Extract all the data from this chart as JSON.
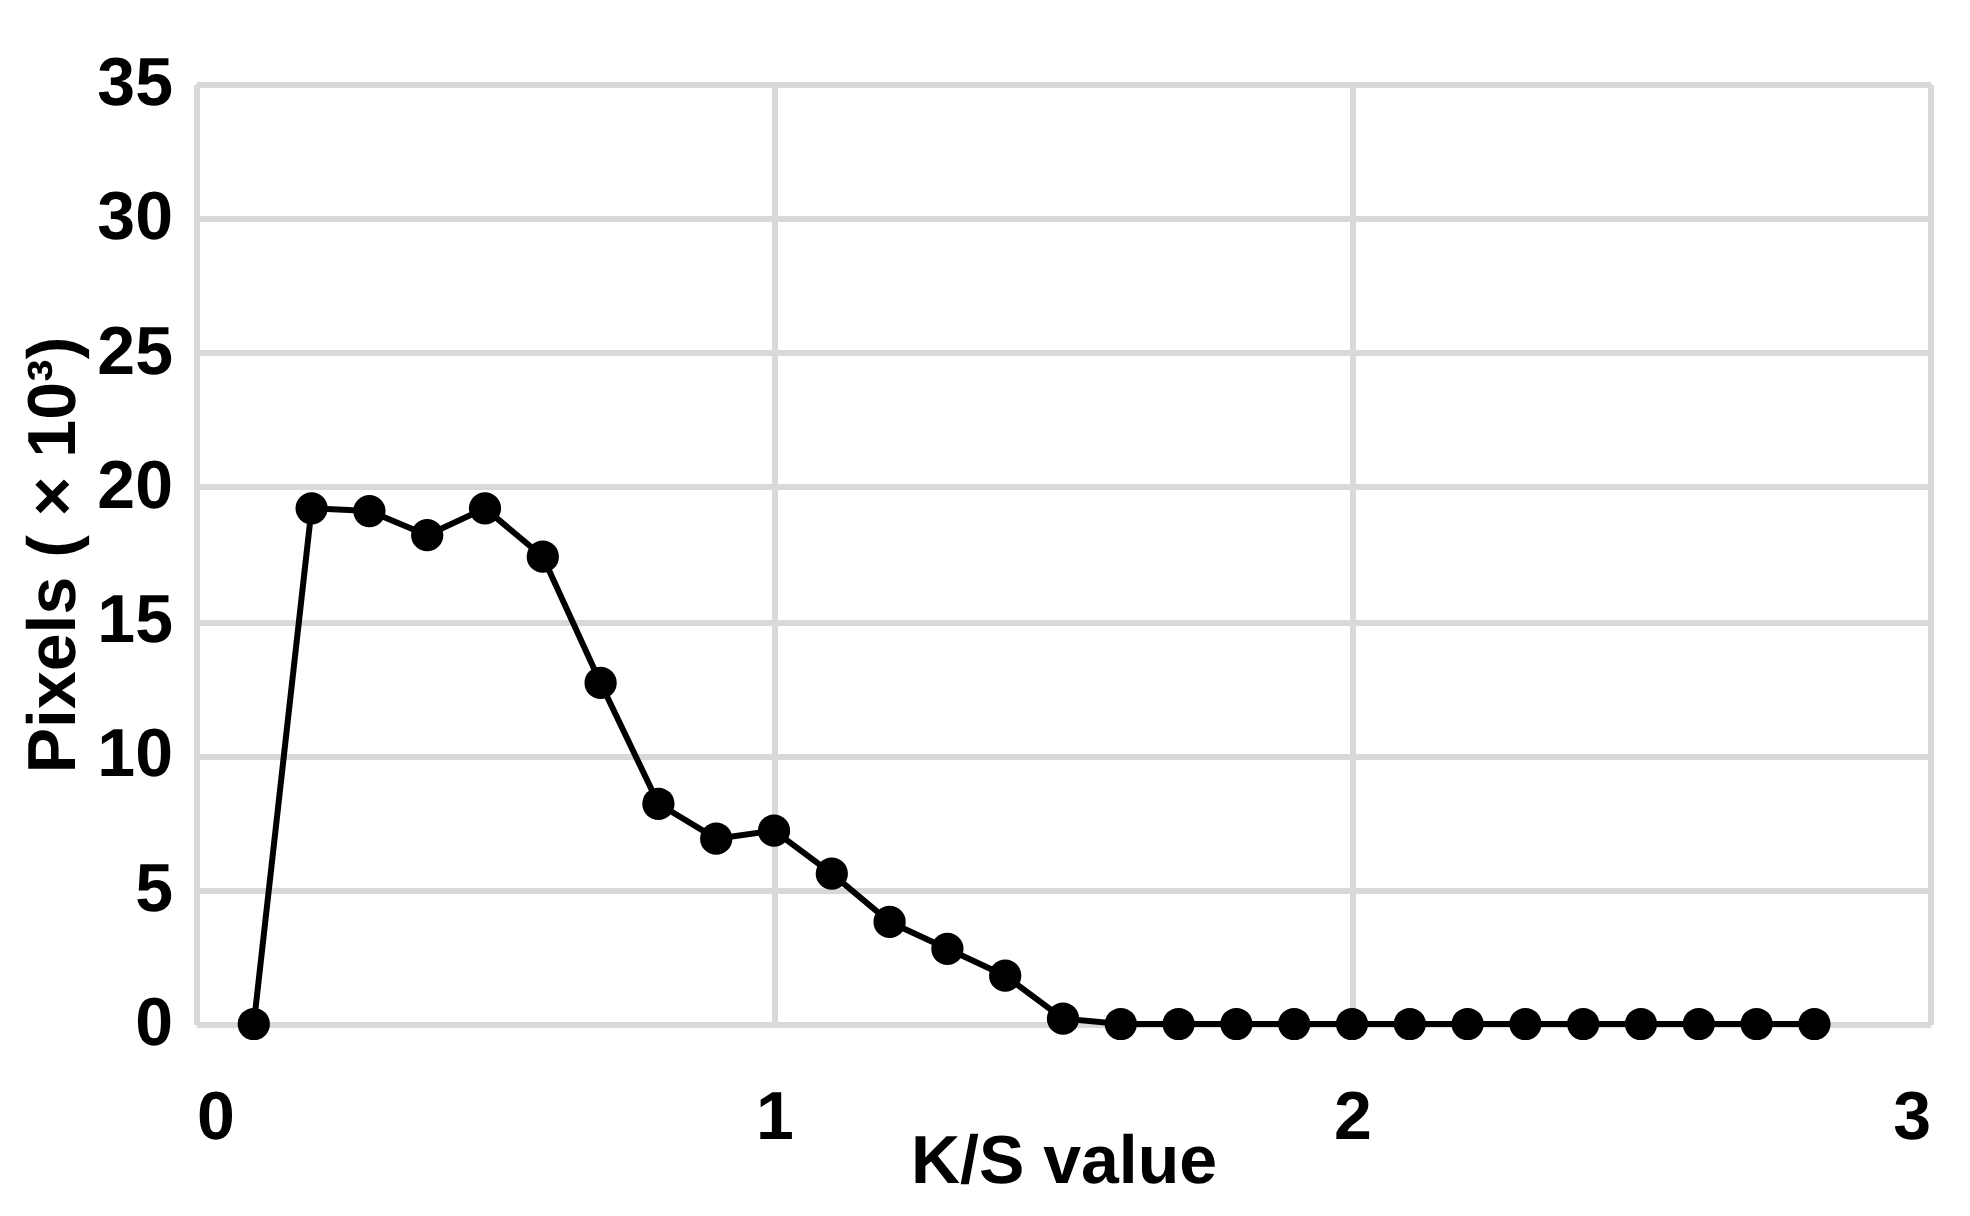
{
  "chart_data": {
    "type": "line",
    "xlabel": "K/S value",
    "ylabel": "Pixels ( × 10³)",
    "x": [
      0.1,
      0.2,
      0.3,
      0.4,
      0.5,
      0.6,
      0.7,
      0.8,
      0.9,
      1.0,
      1.1,
      1.2,
      1.3,
      1.4,
      1.5,
      1.6,
      1.7,
      1.8,
      1.9,
      2.0,
      2.1,
      2.2,
      2.3,
      2.4,
      2.5,
      2.6,
      2.7,
      2.8
    ],
    "series": [
      {
        "color": "#000000",
        "values": [
          0,
          19.2,
          19.1,
          18.2,
          19.2,
          17.4,
          12.7,
          8.2,
          6.9,
          7.2,
          5.6,
          3.8,
          2.8,
          1.8,
          0.2,
          0,
          0,
          0,
          0,
          0,
          0,
          0,
          0,
          0,
          0,
          0,
          0,
          0
        ]
      }
    ],
    "xlim": [
      0,
      3
    ],
    "xticks": [
      0,
      1,
      2,
      3
    ],
    "ylim": [
      0,
      35
    ],
    "yticks": [
      0,
      5,
      10,
      15,
      20,
      25,
      30,
      35
    ],
    "grid": true,
    "marker": "circle",
    "line_style": "solid"
  }
}
